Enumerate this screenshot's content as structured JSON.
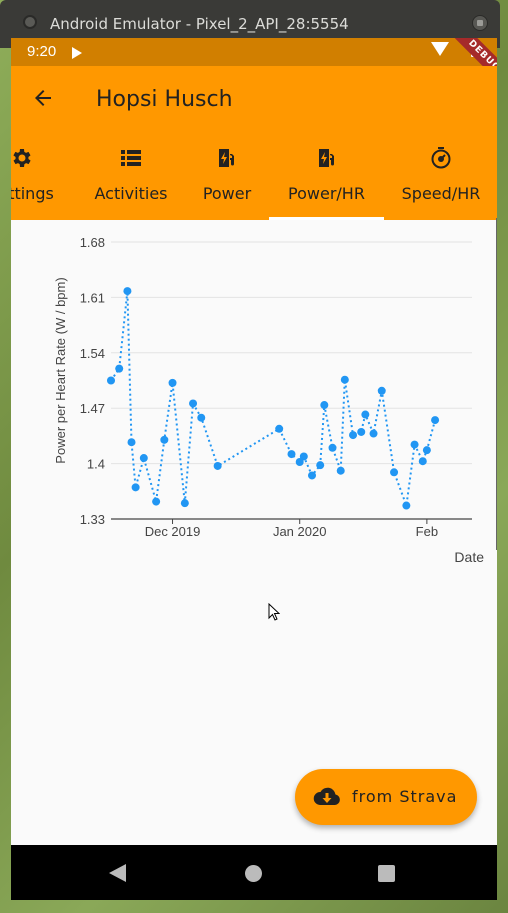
{
  "window": {
    "title": "Android Emulator - Pixel_2_API_28:5554"
  },
  "statusbar": {
    "time": "9:20"
  },
  "debug_banner": "DEBUG",
  "appbar": {
    "title": "Hopsi Husch"
  },
  "tabs": [
    {
      "label": "Settings",
      "icon": "gear-icon"
    },
    {
      "label": "Activities",
      "icon": "list-icon"
    },
    {
      "label": "Power",
      "icon": "ev-station-icon"
    },
    {
      "label": "Power/HR",
      "icon": "ev-station-icon",
      "selected": true
    },
    {
      "label": "Speed/HR",
      "icon": "timer-icon"
    }
  ],
  "fab": {
    "label": "from Strava",
    "icon": "cloud-download-icon"
  },
  "colors": {
    "primary": "#ff9800",
    "statusbar": "#d17f00",
    "series": "#2196f3"
  },
  "chart_data": {
    "type": "line",
    "xlabel": "Date",
    "ylabel": "Power per Heart Rate (W / bpm)",
    "ylim": [
      1.33,
      1.68
    ],
    "yticks": [
      1.33,
      1.4,
      1.47,
      1.54,
      1.61,
      1.68
    ],
    "xlim": [
      "2019-11-16",
      "2020-02-12"
    ],
    "xticks": [
      {
        "label": "Dec 2019",
        "date": "2019-12-01"
      },
      {
        "label": "Jan 2020",
        "date": "2020-01-01"
      },
      {
        "label": "Feb",
        "date": "2020-02-01"
      }
    ],
    "grid": true,
    "series": [
      {
        "style": "dotted",
        "points": [
          {
            "x": "2019-11-16",
            "y": 1.505
          },
          {
            "x": "2019-11-18",
            "y": 1.52
          },
          {
            "x": "2019-11-20",
            "y": 1.618
          },
          {
            "x": "2019-11-21",
            "y": 1.427
          },
          {
            "x": "2019-11-22",
            "y": 1.37
          },
          {
            "x": "2019-11-24",
            "y": 1.407
          },
          {
            "x": "2019-11-27",
            "y": 1.352
          },
          {
            "x": "2019-11-29",
            "y": 1.43
          },
          {
            "x": "2019-11-31",
            "y": 1.502
          },
          {
            "x": "2019-12-04",
            "y": 1.35
          },
          {
            "x": "2019-12-06",
            "y": 1.476
          },
          {
            "x": "2019-12-08",
            "y": 1.458
          },
          {
            "x": "2019-12-12",
            "y": 1.397
          },
          {
            "x": "2019-12-27",
            "y": 1.444
          },
          {
            "x": "2019-12-30",
            "y": 1.412
          },
          {
            "x": "2020-01-01",
            "y": 1.402
          },
          {
            "x": "2020-01-02",
            "y": 1.409
          },
          {
            "x": "2020-01-04",
            "y": 1.385
          },
          {
            "x": "2020-01-06",
            "y": 1.398
          },
          {
            "x": "2020-01-07",
            "y": 1.474
          },
          {
            "x": "2020-01-09",
            "y": 1.42
          },
          {
            "x": "2020-01-11",
            "y": 1.391
          },
          {
            "x": "2020-01-12",
            "y": 1.506
          },
          {
            "x": "2020-01-14",
            "y": 1.436
          },
          {
            "x": "2020-01-16",
            "y": 1.44
          },
          {
            "x": "2020-01-17",
            "y": 1.462
          },
          {
            "x": "2020-01-19",
            "y": 1.438
          },
          {
            "x": "2020-01-21",
            "y": 1.492
          },
          {
            "x": "2020-01-24",
            "y": 1.389
          },
          {
            "x": "2020-01-27",
            "y": 1.347
          },
          {
            "x": "2020-01-29",
            "y": 1.424
          },
          {
            "x": "2020-01-31",
            "y": 1.403
          },
          {
            "x": "2020-02-01",
            "y": 1.417
          },
          {
            "x": "2020-02-03",
            "y": 1.455
          }
        ]
      }
    ]
  }
}
